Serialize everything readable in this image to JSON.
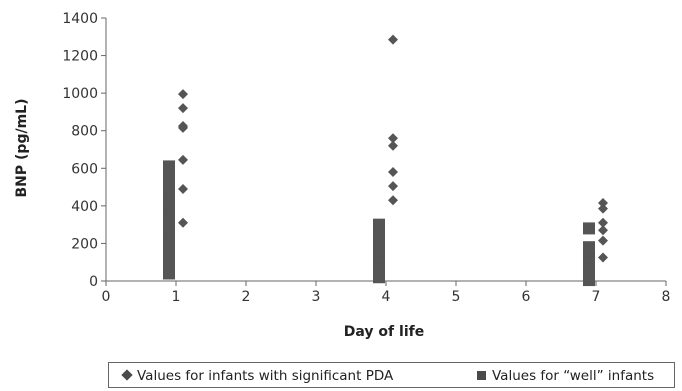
{
  "chart_data": {
    "type": "scatter",
    "xlabel": "Day of life",
    "ylabel": "BNP (pg/mL)",
    "xlim": [
      0,
      8
    ],
    "ylim": [
      0,
      1400
    ],
    "xticks": [
      "0",
      "1",
      "2",
      "3",
      "4",
      "5",
      "6",
      "7",
      "8"
    ],
    "yticks": [
      "0",
      "200",
      "400",
      "600",
      "800",
      "1000",
      "1200",
      "1400"
    ],
    "grid": false,
    "legend_position": "bottom",
    "series": [
      {
        "name": "Values for infants with significant PDA",
        "marker": "diamond",
        "color": "#555555",
        "points": [
          {
            "x": 1.1,
            "y": 995
          },
          {
            "x": 1.1,
            "y": 920
          },
          {
            "x": 1.1,
            "y": 825
          },
          {
            "x": 1.1,
            "y": 815
          },
          {
            "x": 1.1,
            "y": 645
          },
          {
            "x": 1.1,
            "y": 490
          },
          {
            "x": 1.1,
            "y": 310
          },
          {
            "x": 4.1,
            "y": 1285
          },
          {
            "x": 4.1,
            "y": 760
          },
          {
            "x": 4.1,
            "y": 720
          },
          {
            "x": 4.1,
            "y": 580
          },
          {
            "x": 4.1,
            "y": 505
          },
          {
            "x": 4.1,
            "y": 430
          },
          {
            "x": 7.1,
            "y": 415
          },
          {
            "x": 7.1,
            "y": 385
          },
          {
            "x": 7.1,
            "y": 310
          },
          {
            "x": 7.1,
            "y": 270
          },
          {
            "x": 7.1,
            "y": 215
          },
          {
            "x": 7.1,
            "y": 125
          }
        ]
      },
      {
        "name": "Values for “well” infants",
        "marker": "square",
        "color": "#555555",
        "points": [
          {
            "x": 0.9,
            "y": 610
          },
          {
            "x": 0.9,
            "y": 590
          },
          {
            "x": 0.9,
            "y": 575
          },
          {
            "x": 0.9,
            "y": 555
          },
          {
            "x": 0.9,
            "y": 520
          },
          {
            "x": 0.9,
            "y": 500
          },
          {
            "x": 0.9,
            "y": 470
          },
          {
            "x": 0.9,
            "y": 440
          },
          {
            "x": 0.9,
            "y": 420
          },
          {
            "x": 0.9,
            "y": 400
          },
          {
            "x": 0.9,
            "y": 375
          },
          {
            "x": 0.9,
            "y": 350
          },
          {
            "x": 0.9,
            "y": 320
          },
          {
            "x": 0.9,
            "y": 300
          },
          {
            "x": 0.9,
            "y": 275
          },
          {
            "x": 0.9,
            "y": 250
          },
          {
            "x": 0.9,
            "y": 225
          },
          {
            "x": 0.9,
            "y": 200
          },
          {
            "x": 0.9,
            "y": 170
          },
          {
            "x": 0.9,
            "y": 140
          },
          {
            "x": 0.9,
            "y": 110
          },
          {
            "x": 0.9,
            "y": 85
          },
          {
            "x": 0.9,
            "y": 60
          },
          {
            "x": 0.9,
            "y": 40
          },
          {
            "x": 3.9,
            "y": 300
          },
          {
            "x": 3.9,
            "y": 280
          },
          {
            "x": 3.9,
            "y": 260
          },
          {
            "x": 3.9,
            "y": 240
          },
          {
            "x": 3.9,
            "y": 220
          },
          {
            "x": 3.9,
            "y": 200
          },
          {
            "x": 3.9,
            "y": 180
          },
          {
            "x": 3.9,
            "y": 160
          },
          {
            "x": 3.9,
            "y": 140
          },
          {
            "x": 3.9,
            "y": 120
          },
          {
            "x": 3.9,
            "y": 100
          },
          {
            "x": 3.9,
            "y": 80
          },
          {
            "x": 3.9,
            "y": 60
          },
          {
            "x": 3.9,
            "y": 40
          },
          {
            "x": 3.9,
            "y": 20
          },
          {
            "x": 6.9,
            "y": 280
          },
          {
            "x": 6.9,
            "y": 180
          },
          {
            "x": 6.9,
            "y": 160
          },
          {
            "x": 6.9,
            "y": 140
          },
          {
            "x": 6.9,
            "y": 120
          },
          {
            "x": 6.9,
            "y": 100
          },
          {
            "x": 6.9,
            "y": 80
          },
          {
            "x": 6.9,
            "y": 60
          },
          {
            "x": 6.9,
            "y": 40
          },
          {
            "x": 6.9,
            "y": 20
          },
          {
            "x": 6.9,
            "y": 5
          }
        ]
      }
    ]
  },
  "legend": {
    "pda_label": "Values for infants with significant PDA",
    "well_label": "Values for “well” infants"
  }
}
